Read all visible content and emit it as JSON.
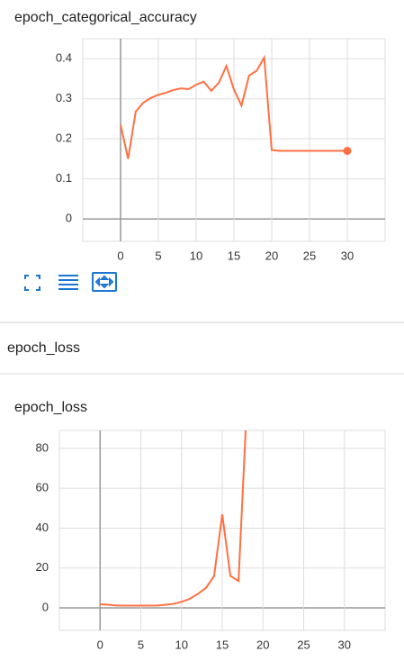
{
  "section_title": "epoch_loss",
  "chart_data": [
    {
      "type": "line",
      "title": "epoch_categorical_accuracy",
      "x": [
        0,
        1,
        2,
        3,
        4,
        5,
        6,
        7,
        8,
        9,
        10,
        11,
        12,
        13,
        14,
        15,
        16,
        17,
        18,
        19,
        20,
        21,
        22,
        23,
        24,
        25,
        26,
        27,
        28,
        29,
        30
      ],
      "series": [
        {
          "name": "epoch_categorical_accuracy",
          "color": "#ff7043",
          "values": [
            0.235,
            0.15,
            0.268,
            0.29,
            0.302,
            0.31,
            0.315,
            0.322,
            0.326,
            0.324,
            0.335,
            0.343,
            0.32,
            0.34,
            0.382,
            0.323,
            0.283,
            0.358,
            0.37,
            0.403,
            0.172,
            0.17,
            0.17,
            0.17,
            0.17,
            0.17,
            0.17,
            0.17,
            0.17,
            0.17,
            0.17
          ]
        }
      ],
      "xlim": [
        -5,
        35
      ],
      "xticks": [
        0,
        5,
        10,
        15,
        20,
        25,
        30
      ],
      "ylim": [
        -0.056,
        0.45
      ],
      "yticks": [
        0,
        0.1,
        0.2,
        0.3,
        0.4
      ],
      "grid": true
    },
    {
      "type": "line",
      "title": "epoch_loss",
      "x": [
        0,
        1,
        2,
        3,
        4,
        5,
        6,
        7,
        8,
        9,
        10,
        11,
        12,
        13,
        14,
        15,
        16,
        17,
        18
      ],
      "series": [
        {
          "name": "epoch_loss",
          "color": "#ff7043",
          "values": [
            1.8,
            1.6,
            1.2,
            1.1,
            1.1,
            1.1,
            1.1,
            1.2,
            1.5,
            2,
            3,
            4.5,
            7,
            10,
            16,
            47,
            16,
            13.5,
            100
          ]
        }
      ],
      "xlim": [
        -5,
        35
      ],
      "xticks": [
        0,
        5,
        10,
        15,
        20,
        25,
        30
      ],
      "ylim": [
        -11.3,
        89
      ],
      "yticks": [
        0,
        20,
        40,
        60,
        80
      ],
      "grid": true
    }
  ]
}
